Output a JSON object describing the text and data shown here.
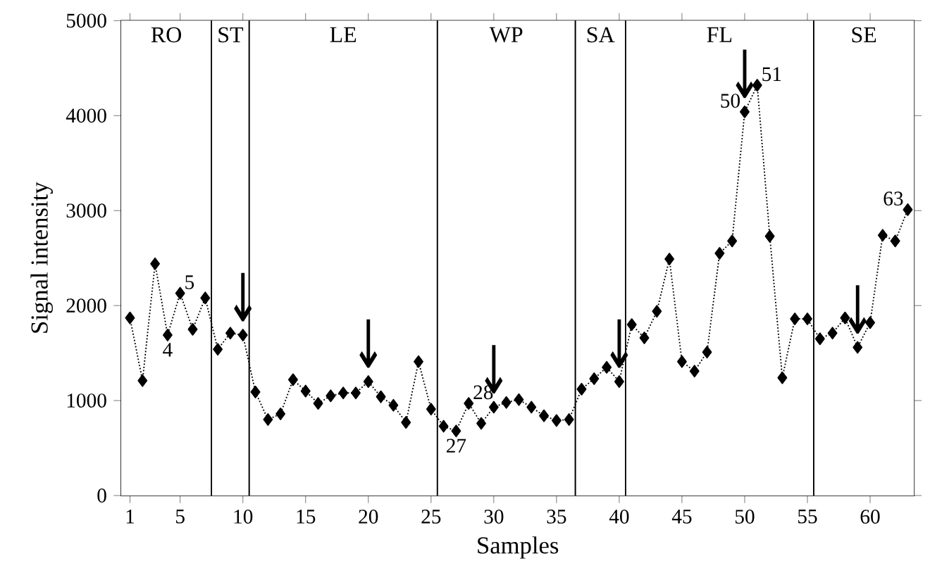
{
  "chart_data": {
    "type": "line",
    "xlabel": "Samples",
    "ylabel": "Signal intensity",
    "x": [
      1,
      2,
      3,
      4,
      5,
      6,
      7,
      8,
      9,
      10,
      11,
      12,
      13,
      14,
      15,
      16,
      17,
      18,
      19,
      20,
      21,
      22,
      23,
      24,
      25,
      26,
      27,
      28,
      29,
      30,
      31,
      32,
      33,
      34,
      35,
      36,
      37,
      38,
      39,
      40,
      41,
      42,
      43,
      44,
      45,
      46,
      47,
      48,
      49,
      50,
      51,
      52,
      53,
      54,
      55,
      56,
      57,
      58,
      59,
      60,
      61,
      62,
      63
    ],
    "series": [
      {
        "color": "#000000",
        "values": [
          1870,
          1210,
          2440,
          1690,
          2130,
          1750,
          2080,
          1540,
          1710,
          1690,
          1090,
          800,
          860,
          1220,
          1100,
          970,
          1050,
          1080,
          1080,
          1200,
          1040,
          950,
          770,
          1410,
          910,
          730,
          680,
          970,
          760,
          930,
          980,
          1010,
          930,
          840,
          790,
          800,
          1120,
          1230,
          1350,
          1200,
          1800,
          1660,
          1940,
          2490,
          1410,
          1310,
          1510,
          2550,
          2680,
          4040,
          4320,
          2730,
          1240,
          1860,
          1860,
          1650,
          1710,
          1870,
          1560,
          1820,
          2740,
          2680,
          3010
        ]
      }
    ],
    "marker": "diamond",
    "line_style": "dotted",
    "grid": false,
    "xlim": [
      0.3,
      63.5
    ],
    "xticks": [
      1,
      5,
      10,
      15,
      20,
      25,
      30,
      35,
      40,
      45,
      50,
      55,
      60
    ],
    "ylim": [
      0,
      5000
    ],
    "yticks": [
      0,
      1000,
      2000,
      3000,
      4000,
      5000
    ],
    "bands": [
      {
        "axis": "x",
        "from": 0.3,
        "to": 7.5,
        "label": "RO",
        "color": "#ffffff"
      },
      {
        "axis": "x",
        "from": 7.5,
        "to": 10.5,
        "label": "ST",
        "color": "#ffffff"
      },
      {
        "axis": "x",
        "from": 10.5,
        "to": 25.5,
        "label": "LE",
        "color": "#ffffff"
      },
      {
        "axis": "x",
        "from": 25.5,
        "to": 36.5,
        "label": "WP",
        "color": "#ffffff"
      },
      {
        "axis": "x",
        "from": 36.5,
        "to": 40.5,
        "label": "SA",
        "color": "#ffffff"
      },
      {
        "axis": "x",
        "from": 40.5,
        "to": 55.5,
        "label": "FL",
        "color": "#ffffff"
      },
      {
        "axis": "x",
        "from": 55.5,
        "to": 63.5,
        "label": "SE",
        "color": "#ffffff"
      }
    ],
    "annotations": [
      {
        "text": "4",
        "x": 4,
        "y": 1690
      },
      {
        "text": "5",
        "x": 5,
        "y": 2130
      },
      {
        "text": "27",
        "x": 27,
        "y": 680
      },
      {
        "text": "28",
        "x": 28,
        "y": 970
      },
      {
        "text": "50",
        "x": 50,
        "y": 4040
      },
      {
        "text": "51",
        "x": 51,
        "y": 4320
      },
      {
        "text": "63",
        "x": 63,
        "y": 3010
      },
      {
        "text": "↓",
        "x": 10,
        "y": 1690
      },
      {
        "text": "↓",
        "x": 20,
        "y": 1200
      },
      {
        "text": "↓",
        "x": 30,
        "y": 930
      },
      {
        "text": "↓",
        "x": 40,
        "y": 1200
      },
      {
        "text": "↓",
        "x": 50,
        "y": 4040
      },
      {
        "text": "↓",
        "x": 59,
        "y": 1560
      }
    ]
  }
}
